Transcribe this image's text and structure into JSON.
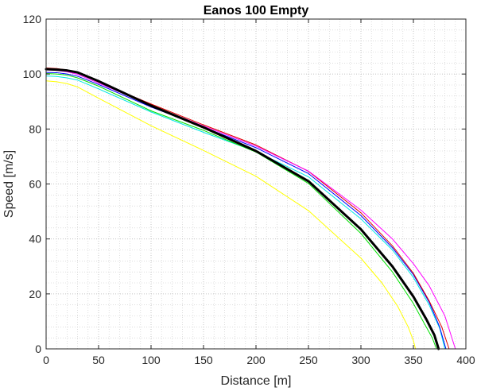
{
  "chart_data": {
    "type": "line",
    "title": "Eanos 100  Empty",
    "xlabel": "Distance [m]",
    "ylabel": "Speed [m/s]",
    "xlim": [
      0,
      400
    ],
    "ylim": [
      0,
      120
    ],
    "xticks": [
      0,
      50,
      100,
      150,
      200,
      250,
      300,
      350,
      400
    ],
    "yticks": [
      0,
      20,
      40,
      60,
      80,
      100,
      120
    ],
    "grid": true,
    "minor_grid": true,
    "series": [
      {
        "name": "yellow",
        "color": "#ffff00",
        "width": 1,
        "x": [
          0,
          10,
          20,
          30,
          50,
          100,
          150,
          200,
          250,
          300,
          320,
          335,
          345,
          350,
          352
        ],
        "y": [
          97.5,
          97.2,
          96.5,
          95.3,
          91.2,
          81.2,
          72.2,
          62.8,
          50.3,
          33.0,
          24.0,
          15.5,
          8.0,
          3.0,
          0
        ]
      },
      {
        "name": "cyan",
        "color": "#00e5e5",
        "width": 1,
        "x": [
          0,
          10,
          20,
          30,
          50,
          100,
          150,
          200,
          250,
          300,
          330,
          350,
          365,
          375,
          380
        ],
        "y": [
          99.3,
          99.1,
          98.6,
          97.8,
          94.6,
          86.2,
          78.8,
          71.8,
          62.6,
          47.3,
          36.0,
          26.0,
          16.0,
          7.5,
          0
        ]
      },
      {
        "name": "green",
        "color": "#00e000",
        "width": 1,
        "x": [
          0,
          10,
          20,
          30,
          50,
          100,
          150,
          200,
          250,
          300,
          330,
          350,
          360,
          368,
          372
        ],
        "y": [
          100.2,
          100.0,
          99.6,
          98.6,
          95.6,
          86.6,
          79.5,
          71.6,
          60.2,
          42.0,
          28.0,
          16.5,
          9.5,
          4.0,
          0
        ]
      },
      {
        "name": "blue",
        "color": "#0000ff",
        "width": 1,
        "x": [
          0,
          10,
          20,
          30,
          50,
          100,
          150,
          200,
          250,
          300,
          330,
          350,
          365,
          375,
          381
        ],
        "y": [
          100.6,
          100.5,
          100.0,
          99.2,
          96.2,
          88.0,
          80.7,
          73.2,
          63.8,
          48.5,
          36.8,
          27.0,
          17.0,
          8.0,
          0
        ]
      },
      {
        "name": "red",
        "color": "#e00000",
        "width": 1,
        "x": [
          0,
          10,
          20,
          30,
          50,
          100,
          150,
          200,
          250,
          300,
          330,
          350,
          365,
          377,
          384
        ],
        "y": [
          102.2,
          102.0,
          101.5,
          100.5,
          97.1,
          89.1,
          81.5,
          74.2,
          64.6,
          49.5,
          37.5,
          27.5,
          17.5,
          8.0,
          0
        ]
      },
      {
        "name": "magenta",
        "color": "#ff00ff",
        "width": 1,
        "x": [
          0,
          10,
          20,
          30,
          50,
          100,
          150,
          200,
          250,
          300,
          330,
          350,
          365,
          380,
          390
        ],
        "y": [
          101.5,
          101.3,
          100.8,
          99.9,
          96.7,
          88.6,
          81.1,
          73.8,
          64.7,
          50.5,
          40.0,
          31.0,
          23.0,
          12.0,
          0
        ]
      },
      {
        "name": "black",
        "color": "#000000",
        "width": 3,
        "x": [
          0,
          10,
          20,
          30,
          50,
          100,
          150,
          200,
          250,
          300,
          330,
          350,
          362,
          370,
          374
        ],
        "y": [
          101.8,
          101.6,
          101.3,
          100.6,
          97.4,
          88.5,
          80.6,
          72.0,
          61.0,
          43.5,
          30.0,
          19.0,
          11.0,
          5.0,
          0
        ]
      }
    ]
  }
}
